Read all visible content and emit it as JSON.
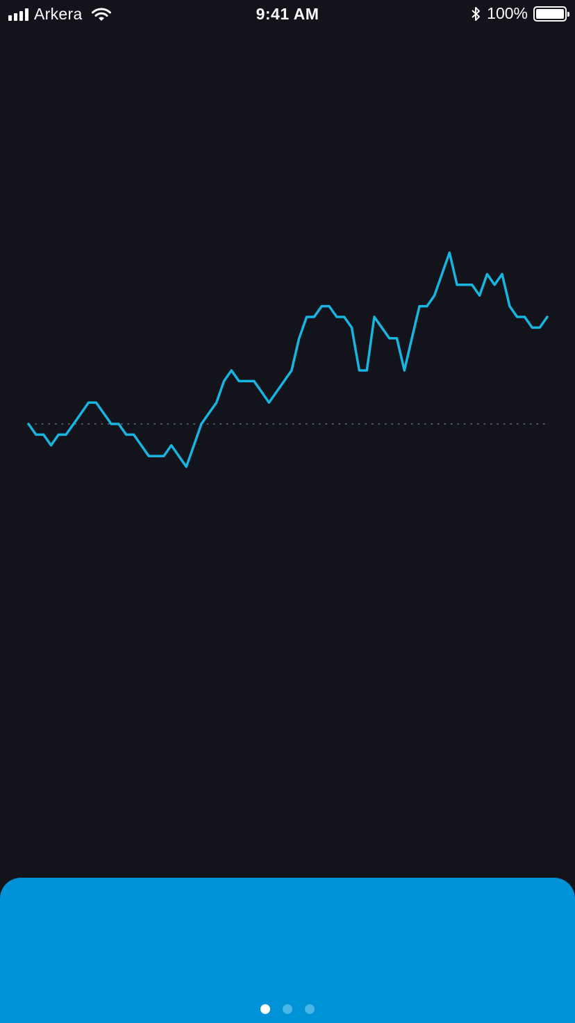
{
  "status_bar": {
    "carrier": "Arkera",
    "time": "9:41 AM",
    "battery_percent": "100%"
  },
  "colors": {
    "background": "#13131c",
    "line": "#16b6e0",
    "baseline": "#6b6f7a",
    "sheet": "#0092d7",
    "dot_active": "#ffffff",
    "dot_inactive": "#4ab6e6"
  },
  "chart_data": {
    "type": "line",
    "baseline": 0,
    "ylim": [
      -10,
      40
    ],
    "series": [
      {
        "values": [
          0,
          -2,
          -2,
          -4,
          -2,
          -2,
          0,
          2,
          4,
          4,
          2,
          0,
          0,
          -2,
          -2,
          -4,
          -6,
          -6,
          -6,
          -4,
          -6,
          -8,
          -4,
          0,
          2,
          4,
          8,
          10,
          8,
          8,
          8,
          6,
          4,
          6,
          8,
          10,
          16,
          20,
          20,
          22,
          22,
          20,
          20,
          18,
          10,
          10,
          20,
          18,
          16,
          16,
          10,
          16,
          22,
          22,
          24,
          28,
          32,
          26,
          26,
          26,
          24,
          28,
          26,
          28,
          22,
          20,
          20,
          18,
          18,
          20
        ]
      }
    ]
  },
  "pager": {
    "count": 3,
    "active_index": 0
  }
}
